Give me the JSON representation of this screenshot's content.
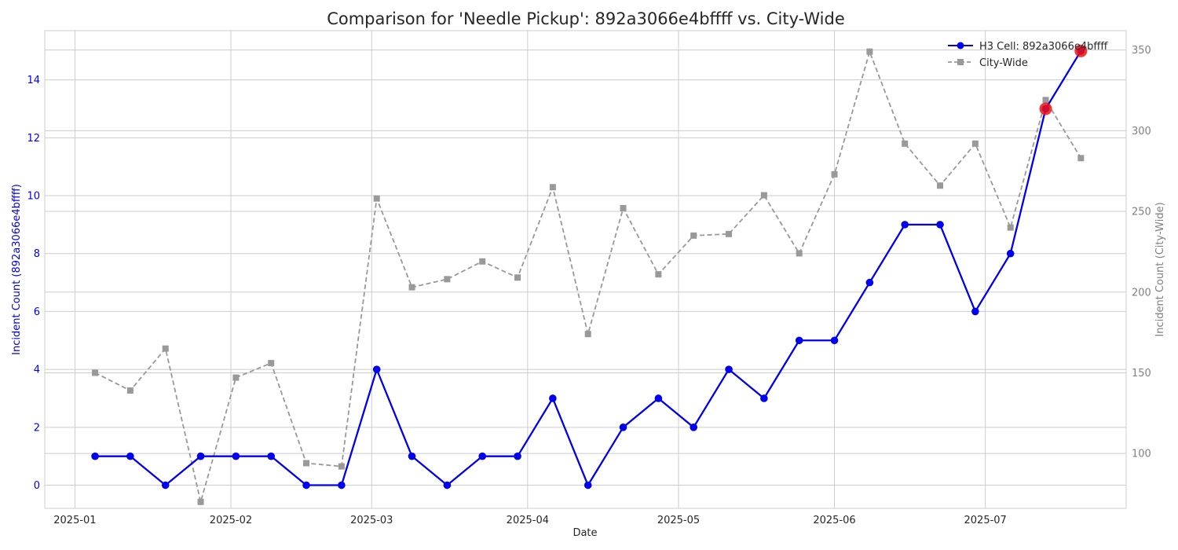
{
  "chart_data": {
    "type": "line",
    "title": "Comparison for 'Needle Pickup': 892a3066e4bffff vs. City-Wide",
    "xlabel": "Date",
    "ylabel_left": "Incident Count (892a3066e4bffff)",
    "ylabel_right": "Incident Count (City-Wide)",
    "x_ticks": [
      "2025-01",
      "2025-02",
      "2025-03",
      "2025-04",
      "2025-05",
      "2025-06",
      "2025-07"
    ],
    "x_tick_dates": [
      "2025-01-01",
      "2025-02-01",
      "2025-03-01",
      "2025-04-01",
      "2025-05-01",
      "2025-06-01",
      "2025-07-01"
    ],
    "xlim": [
      "2024-12-26",
      "2025-07-29"
    ],
    "ylim_left": [
      -0.8,
      15.7
    ],
    "ylim_right": [
      66,
      362
    ],
    "y_ticks_left": [
      0,
      2,
      4,
      6,
      8,
      10,
      12,
      14
    ],
    "y_ticks_right": [
      100,
      150,
      200,
      250,
      300,
      350
    ],
    "grid": true,
    "legend_position": "top-right",
    "x": [
      "2025-01-05",
      "2025-01-12",
      "2025-01-19",
      "2025-01-26",
      "2025-02-02",
      "2025-02-09",
      "2025-02-16",
      "2025-02-23",
      "2025-03-02",
      "2025-03-09",
      "2025-03-16",
      "2025-03-23",
      "2025-03-30",
      "2025-04-06",
      "2025-04-13",
      "2025-04-20",
      "2025-04-27",
      "2025-05-04",
      "2025-05-11",
      "2025-05-18",
      "2025-05-25",
      "2025-06-01",
      "2025-06-08",
      "2025-06-15",
      "2025-06-22",
      "2025-06-29",
      "2025-07-06",
      "2025-07-13",
      "2025-07-20"
    ],
    "series": [
      {
        "name": "H3 Cell: 892a3066e4bffff",
        "axis": "left",
        "color": "#0000ee",
        "marker": "circle",
        "line_style": "solid",
        "values": [
          1,
          1,
          0,
          1,
          1,
          1,
          0,
          0,
          4,
          1,
          0,
          1,
          1,
          3,
          0,
          2,
          3,
          2,
          4,
          3,
          5,
          5,
          7,
          9,
          9,
          6,
          8,
          13,
          15
        ]
      },
      {
        "name": "City-Wide",
        "axis": "right",
        "color": "#999999",
        "marker": "square",
        "line_style": "dashed",
        "values": [
          150,
          139,
          165,
          70,
          147,
          156,
          94,
          92,
          258,
          203,
          208,
          219,
          209,
          265,
          174,
          252,
          211,
          235,
          236,
          260,
          224,
          273,
          349,
          292,
          266,
          292,
          240,
          319,
          283
        ]
      }
    ],
    "highlighted_points": [
      {
        "x": "2025-07-13",
        "value": 13,
        "color": "#ee1111"
      },
      {
        "x": "2025-07-20",
        "value": 15,
        "color": "#ee1111"
      }
    ]
  }
}
